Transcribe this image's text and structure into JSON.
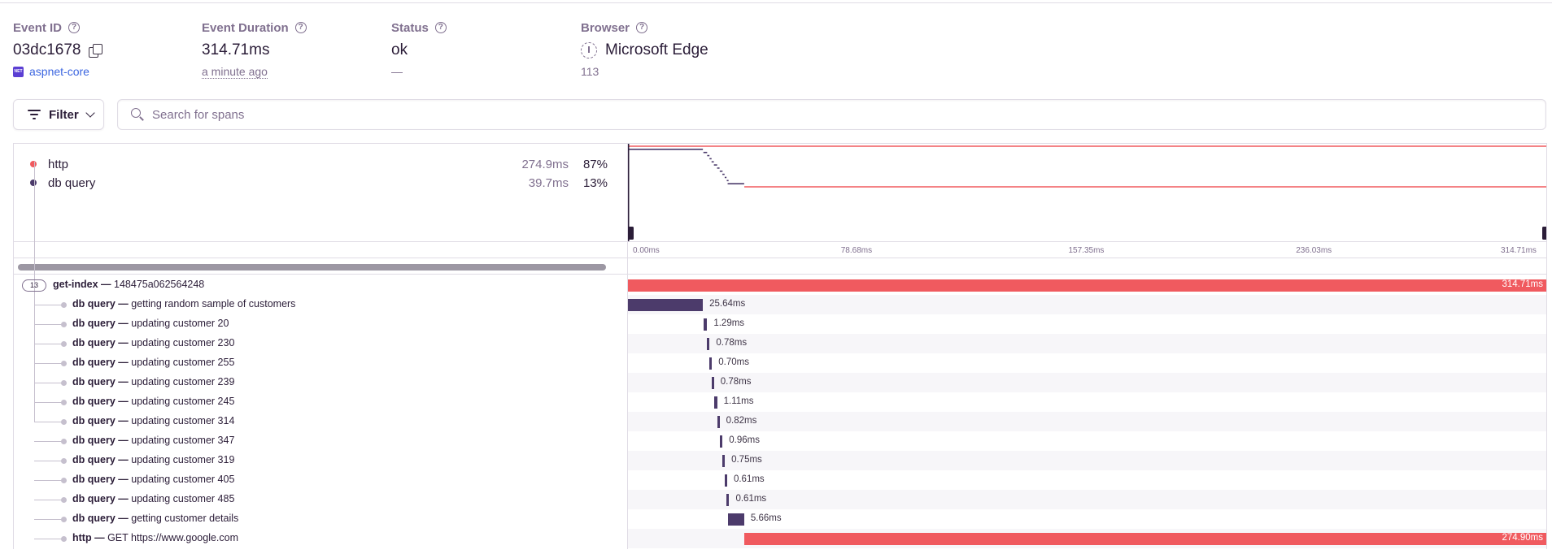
{
  "header": {
    "event_id": {
      "label": "Event ID",
      "value": "03dc1678",
      "project": "aspnet-core",
      "project_badge": "NET"
    },
    "event_duration": {
      "label": "Event Duration",
      "value": "314.71ms",
      "sub": "a minute ago"
    },
    "status": {
      "label": "Status",
      "value": "ok",
      "sub": "—"
    },
    "browser": {
      "label": "Browser",
      "value": "Microsoft Edge",
      "sub": "113"
    },
    "help_glyph": "?"
  },
  "toolbar": {
    "filter_label": "Filter",
    "search_placeholder": "Search for spans",
    "search_value": ""
  },
  "legend": [
    {
      "name": "http",
      "duration": "274.9ms",
      "percent": "87%",
      "color": "#f05a5f"
    },
    {
      "name": "db query",
      "duration": "39.7ms",
      "percent": "13%",
      "color": "#4c3b6b"
    }
  ],
  "axis": {
    "unit": "ms",
    "max": 314.71,
    "ticks": [
      "0.00ms",
      "78.68ms",
      "157.35ms",
      "236.03ms",
      "314.71ms"
    ]
  },
  "colors": {
    "http": "#f05a5f",
    "db": "#4c3b6b"
  },
  "spans": [
    {
      "op": "get-index",
      "desc": "148475a062564248",
      "duration": "314.71ms",
      "start": 0,
      "dur": 314.71,
      "type": "http",
      "child_count": "13",
      "root": true
    },
    {
      "op": "db query",
      "desc": "getting random sample of customers",
      "duration": "25.64ms",
      "start": 0,
      "dur": 25.64,
      "type": "db"
    },
    {
      "op": "db query",
      "desc": "updating customer 20",
      "duration": "1.29ms",
      "start": 25.8,
      "dur": 1.29,
      "type": "db"
    },
    {
      "op": "db query",
      "desc": "updating customer 230",
      "duration": "0.78ms",
      "start": 27.1,
      "dur": 0.78,
      "type": "db"
    },
    {
      "op": "db query",
      "desc": "updating customer 255",
      "duration": "0.70ms",
      "start": 27.9,
      "dur": 0.7,
      "type": "db"
    },
    {
      "op": "db query",
      "desc": "updating customer 239",
      "duration": "0.78ms",
      "start": 28.6,
      "dur": 0.78,
      "type": "db"
    },
    {
      "op": "db query",
      "desc": "updating customer 245",
      "duration": "1.11ms",
      "start": 29.4,
      "dur": 1.11,
      "type": "db"
    },
    {
      "op": "db query",
      "desc": "updating customer 314",
      "duration": "0.82ms",
      "start": 30.5,
      "dur": 0.82,
      "type": "db"
    },
    {
      "op": "db query",
      "desc": "updating customer 347",
      "duration": "0.96ms",
      "start": 31.4,
      "dur": 0.96,
      "type": "db"
    },
    {
      "op": "db query",
      "desc": "updating customer 319",
      "duration": "0.75ms",
      "start": 32.3,
      "dur": 0.75,
      "type": "db"
    },
    {
      "op": "db query",
      "desc": "updating customer 405",
      "duration": "0.61ms",
      "start": 33.1,
      "dur": 0.61,
      "type": "db"
    },
    {
      "op": "db query",
      "desc": "updating customer 485",
      "duration": "0.61ms",
      "start": 33.8,
      "dur": 0.61,
      "type": "db"
    },
    {
      "op": "db query",
      "desc": "getting customer details",
      "duration": "5.66ms",
      "start": 34.1,
      "dur": 5.66,
      "type": "db"
    },
    {
      "op": "http",
      "desc": "GET https://www.google.com",
      "duration": "274.90ms",
      "start": 39.8,
      "dur": 274.9,
      "type": "http"
    }
  ]
}
